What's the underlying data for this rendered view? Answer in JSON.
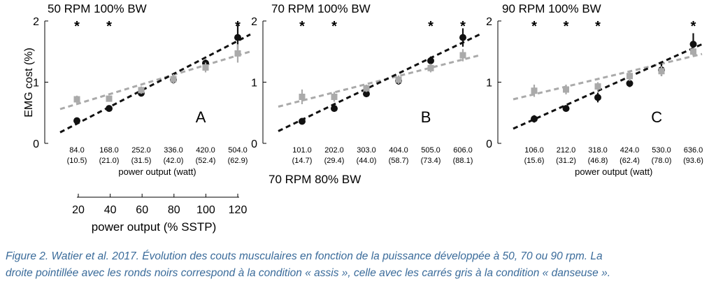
{
  "figure": {
    "ylabel": "EMG cost (%)",
    "xlabel": "power output (watt)",
    "extra_title": "70 RPM 80% BW",
    "sstp_axis": {
      "label": "power output (% SSTP)",
      "ticks": [
        "20",
        "40",
        "60",
        "80",
        "100",
        "120"
      ]
    }
  },
  "caption": {
    "line1": "Figure 2. Watier et al. 2017. Évolution des couts musculaires en fonction de la puissance développée à 50, 70 ou 90 rpm. La",
    "line2": "droite pointillée avec les ronds noirs correspond à la condition « assis », celle avec les carrés gris à la condition « danseuse »."
  },
  "colors": {
    "seated": "#111111",
    "standing": "#aaaaaa"
  },
  "chart_data": [
    {
      "type": "scatter",
      "title": "50 RPM 100% BW",
      "panel_letter": "A",
      "ylim": [
        0,
        2
      ],
      "yticks": [
        "0",
        "1",
        "2"
      ],
      "categories": [
        "84.0",
        "168.0",
        "252.0",
        "336.0",
        "420.0",
        "504.0"
      ],
      "sublabels": [
        "(10.5)",
        "(21.0)",
        "(31.5)",
        "(42.0)",
        "(52.4)",
        "(62.9)"
      ],
      "significance": [
        "*",
        "*",
        "",
        "",
        "",
        "*"
      ],
      "series": [
        {
          "values": [
            0.37,
            0.57,
            0.82,
            1.04,
            1.31,
            1.73
          ],
          "errors": [
            0.05,
            0.03,
            0.04,
            0.06,
            0.06,
            0.2
          ],
          "marker": "circle",
          "fit": [
            0.18,
            1.78
          ]
        },
        {
          "values": [
            0.72,
            0.73,
            0.87,
            1.05,
            1.24,
            1.47
          ],
          "errors": [
            0.06,
            0.04,
            0.06,
            0.08,
            0.08,
            0.15
          ],
          "marker": "square",
          "fit": [
            0.56,
            1.5
          ]
        }
      ]
    },
    {
      "type": "scatter",
      "title": "70 RPM 100% BW",
      "panel_letter": "B",
      "ylim": [
        0,
        2
      ],
      "yticks": [
        "0",
        "1",
        "2"
      ],
      "categories": [
        "101.0",
        "202.0",
        "303.0",
        "404.0",
        "505.0",
        "606.0"
      ],
      "sublabels": [
        "(14.7)",
        "(29.4)",
        "(44.0)",
        "(58.7)",
        "(73.4)",
        "(88.1)"
      ],
      "significance": [
        "*",
        "*",
        "",
        "",
        "*",
        "*"
      ],
      "series": [
        {
          "values": [
            0.36,
            0.57,
            0.81,
            1.02,
            1.35,
            1.73
          ],
          "errors": [
            0.04,
            0.03,
            0.05,
            0.06,
            0.07,
            0.15
          ],
          "marker": "circle",
          "fit": [
            0.2,
            1.78
          ]
        },
        {
          "values": [
            0.76,
            0.76,
            0.9,
            1.04,
            1.23,
            1.44
          ],
          "errors": [
            0.12,
            0.08,
            0.06,
            0.07,
            0.07,
            0.1
          ],
          "marker": "square",
          "fit": [
            0.6,
            1.44
          ]
        }
      ]
    },
    {
      "type": "scatter",
      "title": "90 RPM 100% BW",
      "panel_letter": "C",
      "ylim": [
        0,
        2
      ],
      "yticks": [
        "0",
        "1",
        "2"
      ],
      "categories": [
        "106.0",
        "212.0",
        "318.0",
        "424.0",
        "530.0",
        "636.0"
      ],
      "sublabels": [
        "(15.6)",
        "(31.2)",
        "(46.8)",
        "(62.4)",
        "(78.0)",
        "(93.6)"
      ],
      "significance": [
        "*",
        "*",
        "*",
        "",
        "",
        "*"
      ],
      "series": [
        {
          "values": [
            0.4,
            0.57,
            0.75,
            0.98,
            1.2,
            1.62
          ],
          "errors": [
            0.06,
            0.03,
            0.08,
            0.06,
            0.1,
            0.18
          ],
          "marker": "circle",
          "fit": [
            0.24,
            1.62
          ]
        },
        {
          "values": [
            0.86,
            0.88,
            0.93,
            1.1,
            1.18,
            1.5
          ],
          "errors": [
            0.1,
            0.08,
            0.07,
            0.08,
            0.08,
            0.06
          ],
          "marker": "square",
          "fit": [
            0.72,
            1.46
          ]
        }
      ]
    }
  ]
}
